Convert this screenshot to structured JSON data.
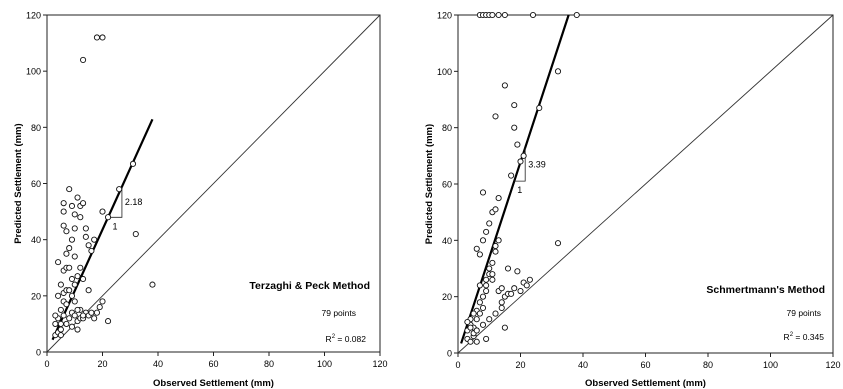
{
  "chart_data": [
    {
      "type": "scatter",
      "title": "Terzaghi & Peck Method",
      "xlabel": "Observed Settlement (mm)",
      "ylabel": "Predicted Settlement (mm)",
      "xlim": [
        0,
        120
      ],
      "ylim": [
        0,
        120
      ],
      "xticks": [
        "0",
        "20",
        "40",
        "60",
        "80",
        "100",
        "120"
      ],
      "yticks": [
        "0",
        "20",
        "40",
        "60",
        "80",
        "100",
        "120"
      ],
      "points_label": "79 points",
      "r2_prefix": "R",
      "r2_sup": "2",
      "r2_value": " = 0.082",
      "slope_label": "2.18",
      "run_label": "1",
      "fit_line": {
        "slope": 2.18,
        "x_range": [
          2,
          38
        ]
      },
      "reference_line": "1:1",
      "series": [
        {
          "points": [
            [
              3,
              10
            ],
            [
              4,
              12
            ],
            [
              3,
              6
            ],
            [
              4,
              7
            ],
            [
              5,
              8
            ],
            [
              5,
              15
            ],
            [
              4,
              20
            ],
            [
              6,
              21
            ],
            [
              7,
              22
            ],
            [
              5,
              24
            ],
            [
              6,
              29
            ],
            [
              7,
              30
            ],
            [
              8,
              30
            ],
            [
              4,
              32
            ],
            [
              6,
              18
            ],
            [
              6,
              13
            ],
            [
              8,
              12
            ],
            [
              9,
              14
            ],
            [
              10,
              13
            ],
            [
              11,
              11
            ],
            [
              12,
              12
            ],
            [
              13,
              12
            ],
            [
              14,
              14
            ],
            [
              15,
              13
            ],
            [
              16,
              14
            ],
            [
              17,
              12
            ],
            [
              18,
              14
            ],
            [
              19,
              16
            ],
            [
              20,
              18
            ],
            [
              22,
              11
            ],
            [
              12,
              15
            ],
            [
              10,
              18
            ],
            [
              9,
              20
            ],
            [
              8,
              22
            ],
            [
              10,
              24
            ],
            [
              11,
              27
            ],
            [
              13,
              26
            ],
            [
              7,
              35
            ],
            [
              8,
              37
            ],
            [
              9,
              40
            ],
            [
              10,
              44
            ],
            [
              7,
              43
            ],
            [
              6,
              45
            ],
            [
              6,
              50
            ],
            [
              6,
              53
            ],
            [
              8,
              58
            ],
            [
              9,
              52
            ],
            [
              10,
              49
            ],
            [
              11,
              55
            ],
            [
              12,
              52
            ],
            [
              13,
              53
            ],
            [
              12,
              48
            ],
            [
              10,
              34
            ],
            [
              14,
              44
            ],
            [
              15,
              38
            ],
            [
              17,
              40
            ],
            [
              20,
              50
            ],
            [
              22,
              48
            ],
            [
              26,
              58
            ],
            [
              31,
              67
            ],
            [
              32,
              42
            ],
            [
              38,
              24
            ],
            [
              13,
              104
            ],
            [
              18,
              112
            ],
            [
              20,
              112
            ],
            [
              5,
              6
            ],
            [
              7,
              17
            ],
            [
              9,
              26
            ],
            [
              15,
              22
            ],
            [
              3,
              13
            ],
            [
              11,
              15
            ],
            [
              12,
              30
            ],
            [
              14,
              41
            ],
            [
              16,
              36
            ],
            [
              5,
              10
            ],
            [
              7,
              10
            ],
            [
              9,
              9
            ],
            [
              11,
              8
            ],
            [
              13,
              13
            ]
          ]
        }
      ]
    },
    {
      "type": "scatter",
      "title": "Schmertmann's Method",
      "xlabel": "Observed Settlement (mm)",
      "ylabel": "Predicted Settlement (mm)",
      "xlim": [
        0,
        120
      ],
      "ylim": [
        0,
        120
      ],
      "xticks": [
        "0",
        "20",
        "40",
        "60",
        "80",
        "100",
        "120"
      ],
      "yticks": [
        "0",
        "20",
        "40",
        "60",
        "80",
        "100",
        "120"
      ],
      "points_label": "79 points",
      "r2_prefix": "R",
      "r2_sup": "2",
      "r2_value": " = 0.345",
      "slope_label": "3.39",
      "run_label": "1",
      "fit_line": {
        "slope": 3.39,
        "x_range": [
          1,
          35.4
        ]
      },
      "reference_line": "1:1",
      "series": [
        {
          "points": [
            [
              3,
              5
            ],
            [
              3,
              8
            ],
            [
              4,
              10
            ],
            [
              4,
              12
            ],
            [
              5,
              6
            ],
            [
              5,
              9
            ],
            [
              6,
              12
            ],
            [
              6,
              15
            ],
            [
              7,
              14
            ],
            [
              7,
              18
            ],
            [
              8,
              20
            ],
            [
              8,
              16
            ],
            [
              9,
              22
            ],
            [
              9,
              24
            ],
            [
              10,
              28
            ],
            [
              10,
              30
            ],
            [
              11,
              26
            ],
            [
              11,
              32
            ],
            [
              12,
              36
            ],
            [
              12,
              38
            ],
            [
              13,
              40
            ],
            [
              13,
              22
            ],
            [
              14,
              23
            ],
            [
              14,
              18
            ],
            [
              15,
              20
            ],
            [
              16,
              21
            ],
            [
              17,
              21
            ],
            [
              18,
              23
            ],
            [
              19,
              29
            ],
            [
              20,
              22
            ],
            [
              21,
              25
            ],
            [
              22,
              24
            ],
            [
              23,
              26
            ],
            [
              7,
              35
            ],
            [
              6,
              37
            ],
            [
              8,
              40
            ],
            [
              9,
              43
            ],
            [
              10,
              46
            ],
            [
              11,
              50
            ],
            [
              12,
              51
            ],
            [
              13,
              55
            ],
            [
              8,
              57
            ],
            [
              12,
              84
            ],
            [
              15,
              95
            ],
            [
              18,
              80
            ],
            [
              18,
              88
            ],
            [
              19,
              74
            ],
            [
              20,
              68
            ],
            [
              21,
              70
            ],
            [
              17,
              63
            ],
            [
              26,
              87
            ],
            [
              32,
              100
            ],
            [
              32,
              39
            ],
            [
              15,
              9
            ],
            [
              9,
              5
            ],
            [
              6,
              4
            ],
            [
              5,
              7
            ],
            [
              4,
              9
            ],
            [
              3,
              11
            ],
            [
              5,
              14
            ],
            [
              7,
              24
            ],
            [
              9,
              26
            ],
            [
              11,
              28
            ],
            [
              7,
              120
            ],
            [
              8,
              120
            ],
            [
              9,
              120
            ],
            [
              10,
              120
            ],
            [
              11,
              120
            ],
            [
              13,
              120
            ],
            [
              15,
              120
            ],
            [
              24,
              120
            ],
            [
              38,
              120
            ],
            [
              4,
              4
            ],
            [
              6,
              8
            ],
            [
              8,
              10
            ],
            [
              10,
              12
            ],
            [
              12,
              14
            ],
            [
              14,
              16
            ],
            [
              16,
              30
            ]
          ]
        }
      ]
    }
  ]
}
